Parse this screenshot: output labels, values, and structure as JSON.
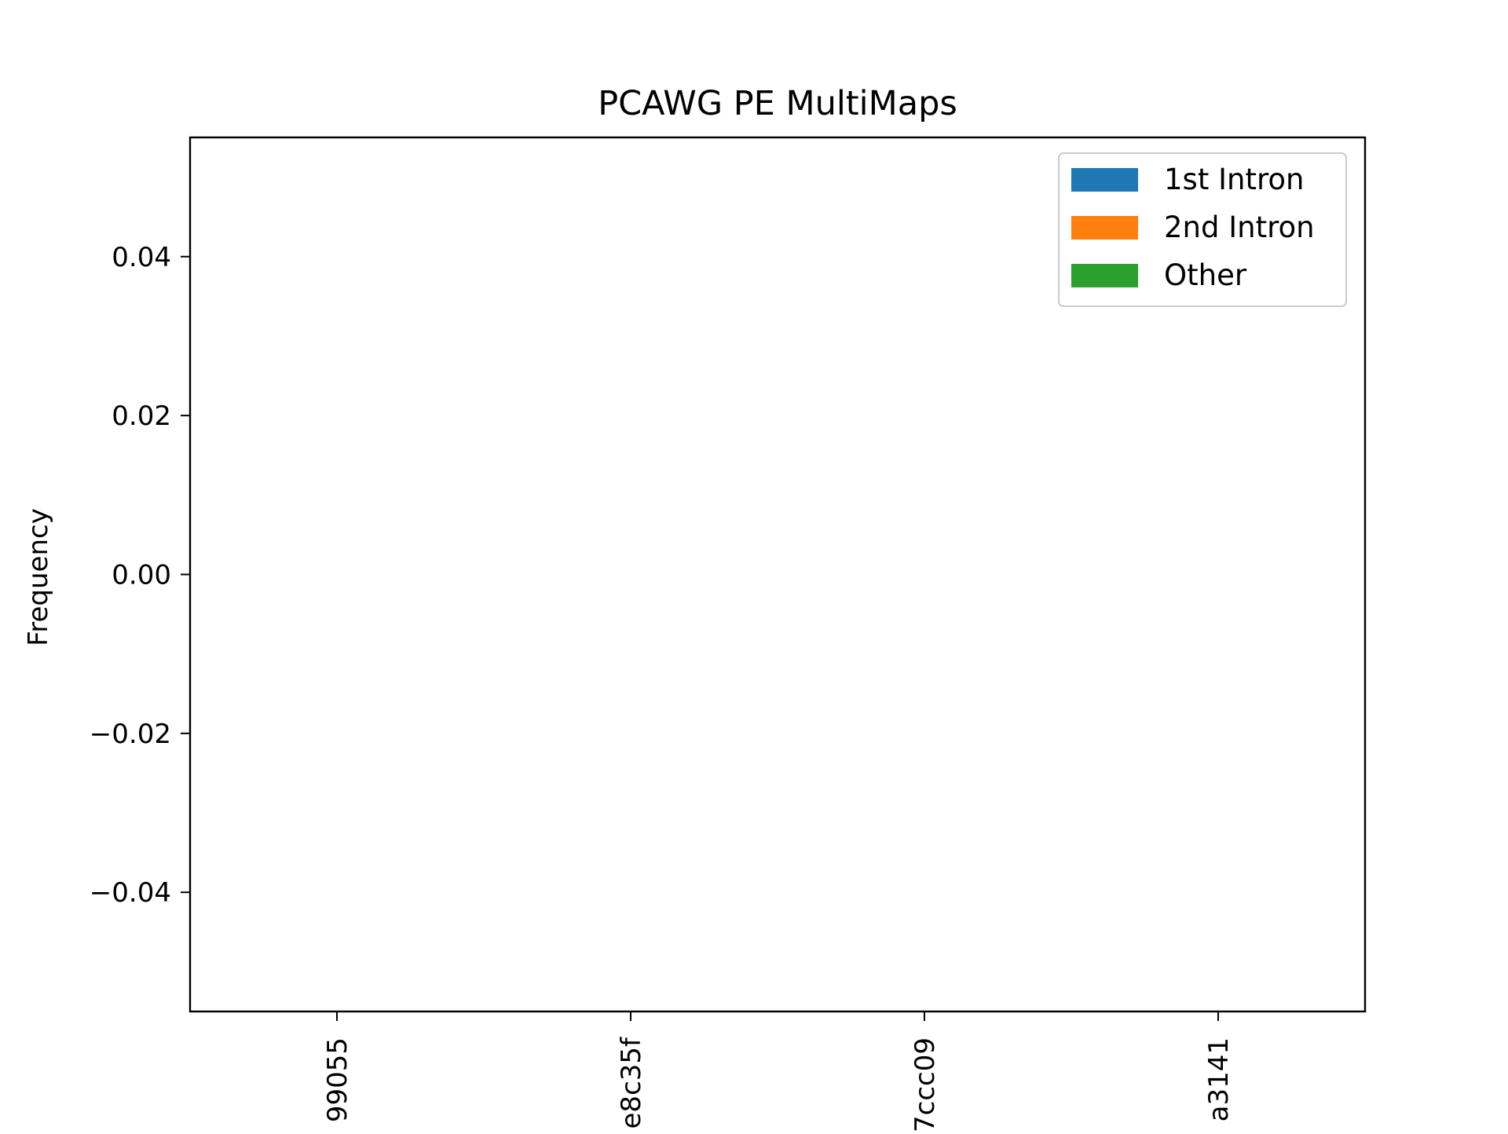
{
  "chart_data": {
    "type": "bar",
    "title": "PCAWG PE MultiMaps",
    "xlabel": "",
    "ylabel": "Frequency",
    "ylim": [
      -0.055,
      0.055
    ],
    "yticks": [
      0.04,
      0.02,
      0.0,
      -0.02,
      -0.04
    ],
    "ytick_labels": [
      "0.04",
      "0.02",
      "0.00",
      "−0.02",
      "−0.04"
    ],
    "categories": [
      "99055",
      "e8c35f",
      "7ccc09",
      "a3141"
    ],
    "series": [
      {
        "name": "1st Intron",
        "color": "#1f77b4",
        "values": [
          0,
          0,
          0,
          0
        ]
      },
      {
        "name": "2nd Intron",
        "color": "#ff7f0e",
        "values": [
          0,
          0,
          0,
          0
        ]
      },
      {
        "name": "Other",
        "color": "#2ca02c",
        "values": [
          0,
          0,
          0,
          0
        ]
      }
    ],
    "legend_position": "top-right",
    "grid": false
  }
}
